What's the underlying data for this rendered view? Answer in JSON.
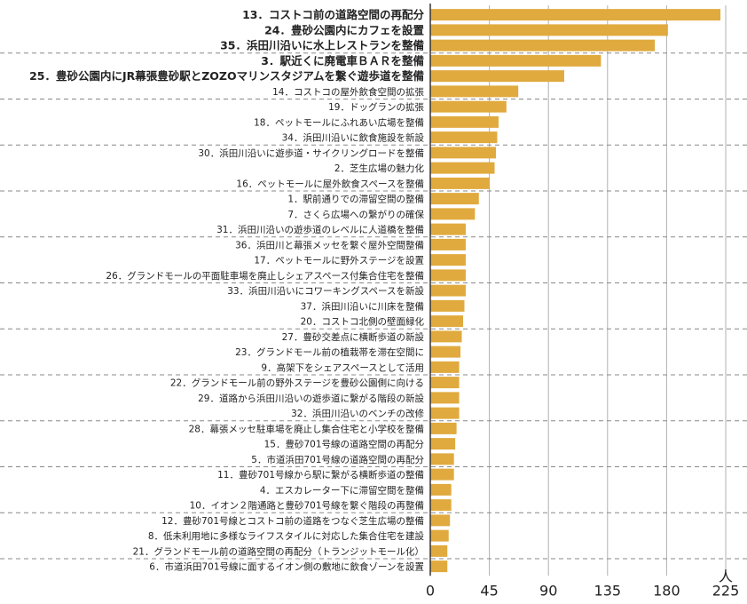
{
  "chart_data": {
    "type": "bar",
    "orientation": "horizontal",
    "unit": "人",
    "xlim": [
      0,
      225
    ],
    "x_ticks": [
      "0",
      "45",
      "90",
      "135",
      "180",
      "225"
    ],
    "grid": true,
    "bar_color": "#e0aa3e",
    "gridline_color": "#b0b0b0",
    "separator_color": "#888888",
    "highlighted_count": 5,
    "categories": [
      "13．コストコ前の道路空間の再配分",
      "24．豊砂公園内にカフェを設置",
      "35．浜田川沿いに水上レストランを整備",
      "3．駅近くに廃電車ＢＡＲを整備",
      "25．豊砂公園内にJR幕張豊砂駅とZOZOマリンスタジアムを繋ぐ遊歩道を整備",
      "14．コストコの屋外飲食空間の拡張",
      "19．ドッグランの拡張",
      "18．ペットモールにふれあい広場を整備",
      "34．浜田川沿いに飲食施設を新設",
      "30．浜田川沿いに遊歩道・サイクリングロードを整備",
      "2．芝生広場の魅力化",
      "16．ペットモールに屋外飲食スペースを整備",
      "1．駅前通りでの滞留空間の整備",
      "7．さくら広場への繋がりの確保",
      "31．浜田川沿いの遊歩道のレベルに人道橋を整備",
      "36．浜田川と幕張メッセを繋ぐ屋外空間整備",
      "17．ペットモールに野外ステージを設置",
      "26．グランドモールの平面駐車場を廃止しシェアスペース付集合住宅を整備",
      "33．浜田川沿いにコワーキングスペースを新設",
      "37．浜田川沿いに川床を整備",
      "20．コストコ北側の壁面緑化",
      "27．豊砂交差点に横断歩道の新設",
      "23．グランドモール前の植栽帯を滞在空間に",
      "9．高架下をシェアスペースとして活用",
      "22．グランドモール前の野外ステージを豊砂公園側に向ける",
      "29．道路から浜田川沿いの遊歩道に繋がる階段の新設",
      "32．浜田川沿いのベンチの改修",
      "28．幕張メッセ駐車場を廃止し集合住宅と小学校を整備",
      "15．豊砂701号線の道路空間の再配分",
      "5．市道浜田701号線の道路空間の再配分",
      "11．豊砂701号線から駅に繋がる横断歩道の整備",
      "4．エスカレーター下に滞留空間を整備",
      "10．イオン２階通路と豊砂701号線を繋ぐ階段の再整備",
      "12．豊砂701号線とコストコ前の道路をつなぐ芝生広場の整備",
      "8．低未利用地に多様なライフスタイルに対応した集合住宅を建設",
      "21．グランドモール前の道路空間の再配分（トランジットモール化）",
      "6．市道浜田701号線に面するイオン側の敷地に飲食ゾーンを設置"
    ],
    "values": [
      221,
      181,
      171,
      130,
      102,
      67,
      58,
      52,
      51,
      50,
      49,
      45,
      37,
      34,
      27,
      27,
      27,
      27,
      27,
      26,
      25,
      24,
      23,
      22,
      22,
      22,
      22,
      20,
      19,
      18,
      18,
      16,
      16,
      15,
      14,
      13,
      13
    ]
  }
}
